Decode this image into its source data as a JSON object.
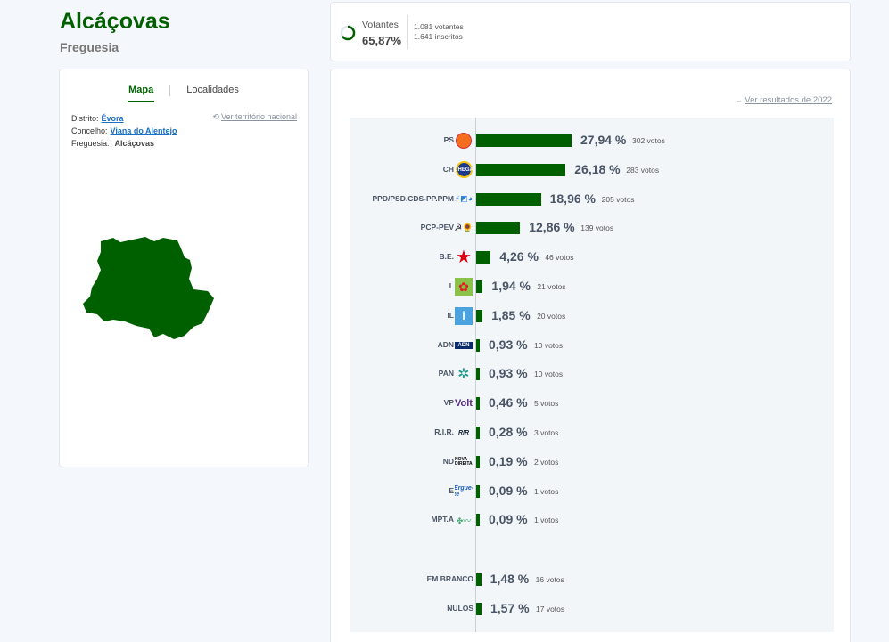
{
  "header": {
    "title": "Alcáçovas",
    "subtitle": "Freguesia"
  },
  "map_card": {
    "tabs": [
      "Mapa",
      "Localidades"
    ],
    "active_tab": "Mapa",
    "distrito_label": "Distrito:",
    "distrito_value": "Évora",
    "concelho_label": "Concelho:",
    "concelho_value": "Viana do Alentejo",
    "freguesia_label": "Freguesia:",
    "freguesia_value": "Alcáçovas",
    "national_link": "Ver território nacional",
    "map_color": "#006000"
  },
  "stats": {
    "label": "Votantes",
    "pct": "65,87%",
    "turnout_fraction": 0.6587,
    "votantes": "1.081 votantes",
    "inscritos": "1.641 inscritos"
  },
  "results": {
    "prev_link": "Ver resultados de 2022",
    "bar_color": "#006000",
    "rows": [
      {
        "party": "PS",
        "logo": "ps-logo",
        "value": 27.94,
        "pct": "27,94 %",
        "votes": "302 votos"
      },
      {
        "party": "CH",
        "logo": "ch-logo",
        "logo_text": "CHEGA",
        "value": 26.18,
        "pct": "26,18 %",
        "votes": "283 votos"
      },
      {
        "party": "PPD/PSD.CDS-PP.PPM",
        "logo": "ad-logo",
        "value": 18.96,
        "pct": "18,96 %",
        "votes": "205 votos"
      },
      {
        "party": "PCP-PEV",
        "logo": "cdu-logo",
        "value": 12.86,
        "pct": "12,86 %",
        "votes": "139 votos"
      },
      {
        "party": "B.E.",
        "logo": "be-logo",
        "value": 4.26,
        "pct": "4,26 %",
        "votes": "46 votos"
      },
      {
        "party": "L",
        "logo": "livre-logo",
        "value": 1.94,
        "pct": "1,94 %",
        "votes": "21 votos"
      },
      {
        "party": "IL",
        "logo": "il-logo",
        "logo_text": "i",
        "value": 1.85,
        "pct": "1,85 %",
        "votes": "20 votos"
      },
      {
        "party": "ADN",
        "logo": "adn-logo",
        "logo_text": "ADN",
        "value": 0.93,
        "pct": "0,93 %",
        "votes": "10 votos"
      },
      {
        "party": "PAN",
        "logo": "pan-logo",
        "value": 0.93,
        "pct": "0,93 %",
        "votes": "10 votos"
      },
      {
        "party": "VP",
        "logo": "volt-logo",
        "logo_text": "Volt",
        "value": 0.46,
        "pct": "0,46 %",
        "votes": "5 votos"
      },
      {
        "party": "R.I.R.",
        "logo": "rir-logo",
        "logo_text": "RIR",
        "value": 0.28,
        "pct": "0,28 %",
        "votes": "3 votos"
      },
      {
        "party": "ND",
        "logo": "nd-logo",
        "logo_text": "NOVA DIREITA",
        "value": 0.19,
        "pct": "0,19 %",
        "votes": "2 votos"
      },
      {
        "party": "E",
        "logo": "ergue-te-logo",
        "logo_text": "Ergue-te",
        "value": 0.09,
        "pct": "0,09 %",
        "votes": "1 votos"
      },
      {
        "party": "MPT.A",
        "logo": "mpt-logo",
        "value": 0.09,
        "pct": "0,09 %",
        "votes": "1 votos"
      }
    ],
    "extra_rows": [
      {
        "party": "EM BRANCO",
        "value": 1.48,
        "pct": "1,48 %",
        "votes": "16 votos"
      },
      {
        "party": "NULOS",
        "value": 1.57,
        "pct": "1,57 %",
        "votes": "17 votos"
      }
    ]
  }
}
